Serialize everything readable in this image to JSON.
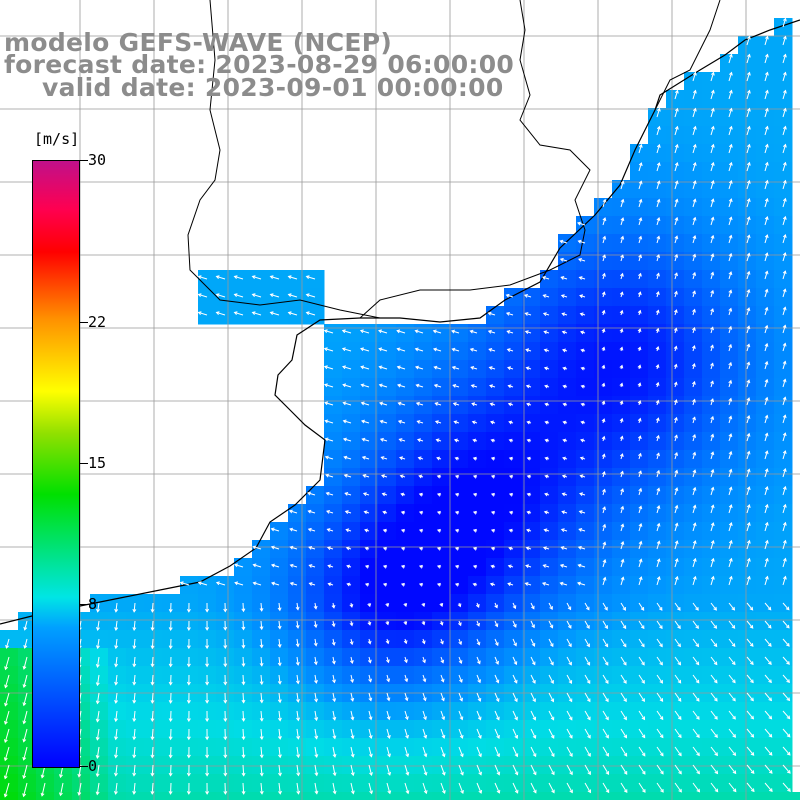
{
  "title": {
    "line1": "modelo GEFS-WAVE (NCEP)",
    "line2": "forecast date: 2023-08-29 06:00:00",
    "line3": "valid date: 2023-09-01 00:00:00"
  },
  "colorbar": {
    "unit": "[m/s]",
    "min": 0,
    "max": 30,
    "ticks": [
      "30",
      "22",
      "15",
      "8",
      "0"
    ],
    "tick_values": [
      30,
      22,
      15,
      8,
      0
    ],
    "colors": {
      "low": "#0000ff",
      "mid_low": "#00a0ff",
      "cyan": "#00e5e5",
      "green": "#00e000",
      "yellow": "#ffff00",
      "orange": "#ff9000",
      "red": "#ff0000",
      "high": "#c0108a"
    }
  },
  "map": {
    "land_color": "#ffffff",
    "grid_color": "#999999",
    "coast_color": "#000000",
    "vector_color": "#ffffff"
  }
}
